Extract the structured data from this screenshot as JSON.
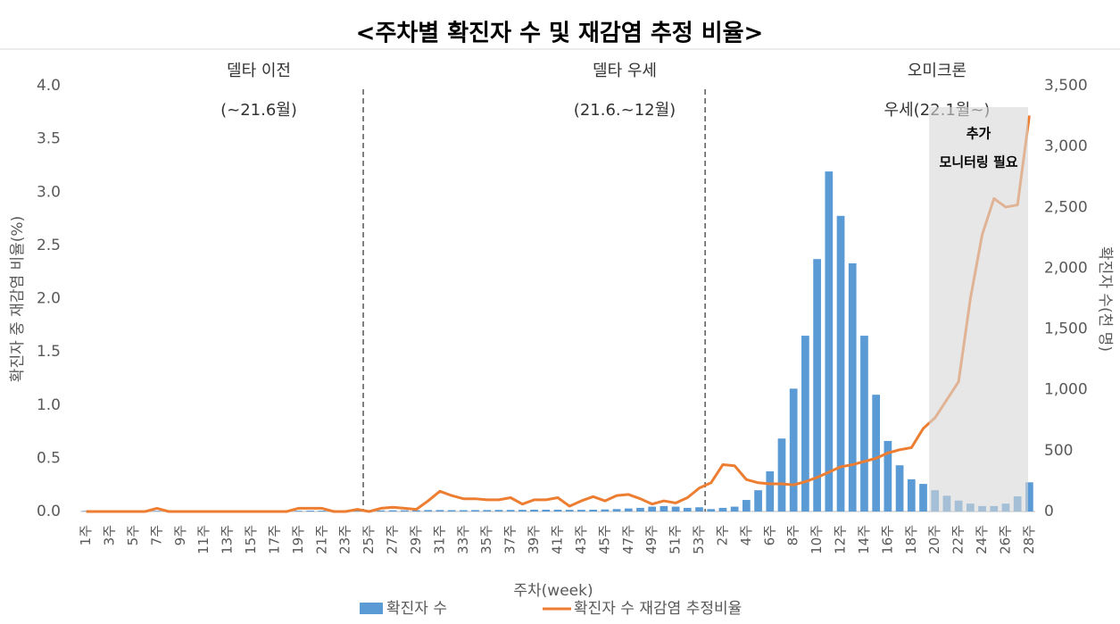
{
  "chart_data": {
    "type": "bar-line",
    "title": "<주차별 확진자 수 및 재감염 추정 비율>",
    "x_label": "주차(week)",
    "y_label": "확진자 중 재감염 비율(%)",
    "y2_label": "확진자 수(천 명)",
    "categories": [
      "1주",
      null,
      "3주",
      null,
      "5주",
      null,
      "7주",
      null,
      "9주",
      null,
      "11주",
      null,
      "13주",
      null,
      "15주",
      null,
      "17주",
      null,
      "19주",
      null,
      "21주",
      null,
      "23주",
      null,
      "25주",
      null,
      "27주",
      null,
      "29주",
      null,
      "31주",
      null,
      "33주",
      null,
      "35주",
      null,
      "37주",
      null,
      "39주",
      null,
      "41주",
      null,
      "43주",
      null,
      "45주",
      null,
      "47주",
      null,
      "49주",
      null,
      "51주",
      null,
      "53주",
      null,
      "2주",
      null,
      "4주",
      null,
      "6주",
      null,
      "8주",
      null,
      "10주",
      null,
      "12주",
      null,
      "14주",
      null,
      "16주",
      null,
      "18주",
      null,
      "20주",
      null,
      "22주",
      null,
      "24주",
      null,
      "26주",
      null,
      "28주"
    ],
    "series": [
      {
        "name": "확진자 수",
        "color": "#5b9bd5",
        "axis": "y2",
        "kind": "bar",
        "values": [
          5,
          5,
          5,
          4,
          4,
          4,
          5,
          6,
          5,
          4,
          4,
          4,
          4,
          4,
          5,
          5,
          5,
          5,
          6,
          7,
          7,
          6,
          6,
          7,
          8,
          9,
          10,
          10,
          10,
          12,
          12,
          11,
          11,
          12,
          12,
          13,
          13,
          14,
          15,
          15,
          15,
          14,
          14,
          15,
          17,
          20,
          25,
          30,
          40,
          45,
          40,
          30,
          35,
          20,
          30,
          40,
          95,
          175,
          330,
          600,
          1010,
          1445,
          2075,
          2795,
          2430,
          2040,
          1445,
          960,
          580,
          380,
          265,
          227,
          175,
          130,
          90,
          65,
          45,
          45,
          65,
          125,
          240
        ]
      },
      {
        "name": "확진자 수 재감염 추정비율",
        "color": "#ed7d31",
        "axis": "y",
        "kind": "line",
        "values": [
          0,
          0,
          0,
          0,
          0,
          0,
          0.03,
          0,
          0,
          0,
          0,
          0,
          0,
          0,
          0,
          0,
          0,
          0,
          0.03,
          0.03,
          0.03,
          0,
          0,
          0.02,
          0,
          0.03,
          0.04,
          0.03,
          0.02,
          0.1,
          0.19,
          0.15,
          0.12,
          0.12,
          0.11,
          0.11,
          0.13,
          0.07,
          0.11,
          0.11,
          0.13,
          0.05,
          0.1,
          0.14,
          0.1,
          0.15,
          0.16,
          0.12,
          0.07,
          0.1,
          0.08,
          0.13,
          0.22,
          0.27,
          0.44,
          0.43,
          0.3,
          0.27,
          0.26,
          0.26,
          0.25,
          0.28,
          0.32,
          0.37,
          0.42,
          0.44,
          0.47,
          0.5,
          0.55,
          0.58,
          0.6,
          0.78,
          0.88,
          1.05,
          1.22,
          2.0,
          2.6,
          2.94,
          2.86,
          2.88,
          3.72
        ]
      }
    ],
    "ylim": [
      0,
      4
    ],
    "yticks": [
      {
        "value": 0,
        "label": "0.0"
      },
      {
        "value": 0.5,
        "label": "0.5"
      },
      {
        "value": 1,
        "label": "1.0"
      },
      {
        "value": 1.5,
        "label": "1.5"
      },
      {
        "value": 2,
        "label": "2.0"
      },
      {
        "value": 2.5,
        "label": "2.5"
      },
      {
        "value": 3,
        "label": "3.0"
      },
      {
        "value": 3.5,
        "label": "3.5"
      },
      {
        "value": 4,
        "label": "4.0"
      }
    ],
    "y2lim": [
      0,
      3500
    ],
    "y2ticks": [
      0,
      500,
      {
        "value": 1000,
        "label": "1,000"
      },
      {
        "value": 1500,
        "label": "1,500"
      },
      {
        "value": 2000,
        "label": "2,000"
      },
      {
        "value": 2500,
        "label": "2,500"
      },
      {
        "value": 3000,
        "label": "3,000"
      },
      {
        "value": 3500,
        "label": "3,500"
      }
    ],
    "periods": [
      {
        "name": "델타 이전",
        "range": "(~21.6월)"
      },
      {
        "name": "델타 우세",
        "range": "(21.6.~12월)"
      },
      {
        "name": "오미크론",
        "range": "우세(22.1월~)"
      }
    ],
    "annotation": [
      "추가",
      "모니터링 필요"
    ]
  }
}
